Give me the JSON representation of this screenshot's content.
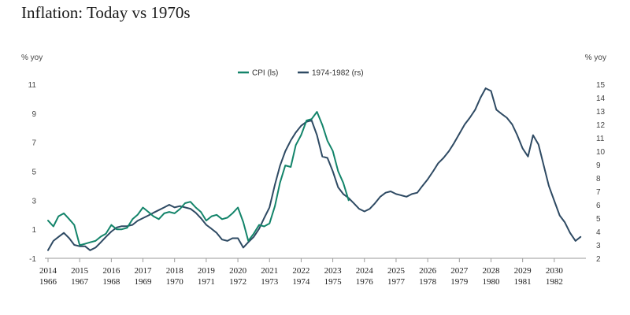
{
  "chart_data": {
    "type": "line",
    "title": "Inflation: Today vs 1970s",
    "left_axis": {
      "unit_label": "% yoy",
      "ylim": [
        -1,
        11
      ],
      "ticks": [
        -1,
        1,
        3,
        5,
        7,
        9,
        11
      ]
    },
    "right_axis": {
      "unit_label": "% yoy",
      "ylim": [
        2,
        15
      ],
      "ticks": [
        2,
        3,
        4,
        5,
        6,
        7,
        8,
        9,
        10,
        11,
        12,
        13,
        14,
        15
      ]
    },
    "x_ticks_top": [
      "2014",
      "2015",
      "2016",
      "2017",
      "2018",
      "2019",
      "2020",
      "2021",
      "2022",
      "2023",
      "2024",
      "2025",
      "2026",
      "2027",
      "2028",
      "2029",
      "2030"
    ],
    "x_ticks_bottom": [
      "1966",
      "1967",
      "1968",
      "1969",
      "1970",
      "1971",
      "1972",
      "1973",
      "1974",
      "1975",
      "1976",
      "1977",
      "1978",
      "1979",
      "1980",
      "1981",
      "1982"
    ],
    "legend_position": "top-center",
    "grid": false,
    "series": [
      {
        "name": "CPI (ls)",
        "axis": "left",
        "color": "#13846a",
        "x": [
          2014.0,
          2014.17,
          2014.33,
          2014.5,
          2014.67,
          2014.83,
          2015.0,
          2015.17,
          2015.33,
          2015.5,
          2015.67,
          2015.83,
          2016.0,
          2016.17,
          2016.33,
          2016.5,
          2016.67,
          2016.83,
          2017.0,
          2017.17,
          2017.33,
          2017.5,
          2017.67,
          2017.83,
          2018.0,
          2018.17,
          2018.33,
          2018.5,
          2018.67,
          2018.83,
          2019.0,
          2019.17,
          2019.33,
          2019.5,
          2019.67,
          2019.83,
          2020.0,
          2020.17,
          2020.33,
          2020.5,
          2020.67,
          2020.83,
          2021.0,
          2021.17,
          2021.33,
          2021.5,
          2021.67,
          2021.83,
          2022.0,
          2022.17,
          2022.33,
          2022.5,
          2022.67,
          2022.83,
          2023.0,
          2023.17,
          2023.33,
          2023.5
        ],
        "values": [
          1.6,
          1.2,
          1.9,
          2.1,
          1.7,
          1.3,
          -0.1,
          0.0,
          0.1,
          0.2,
          0.5,
          0.7,
          1.3,
          1.0,
          1.0,
          1.1,
          1.7,
          2.0,
          2.5,
          2.2,
          1.9,
          1.7,
          2.1,
          2.2,
          2.1,
          2.4,
          2.8,
          2.9,
          2.5,
          2.2,
          1.6,
          1.9,
          2.0,
          1.7,
          1.8,
          2.1,
          2.5,
          1.5,
          0.2,
          0.7,
          1.3,
          1.2,
          1.4,
          2.6,
          4.2,
          5.4,
          5.3,
          6.8,
          7.5,
          8.5,
          8.6,
          9.1,
          8.2,
          7.1,
          6.4,
          5.0,
          4.2,
          3.0
        ]
      },
      {
        "name": "1974-1982 (rs)",
        "axis": "right",
        "color": "#2e4a63",
        "x": [
          2014.0,
          2014.17,
          2014.33,
          2014.5,
          2014.67,
          2014.83,
          2015.0,
          2015.17,
          2015.33,
          2015.5,
          2015.67,
          2015.83,
          2016.0,
          2016.17,
          2016.33,
          2016.5,
          2016.67,
          2016.83,
          2017.0,
          2017.17,
          2017.33,
          2017.5,
          2017.67,
          2017.83,
          2018.0,
          2018.17,
          2018.33,
          2018.5,
          2018.67,
          2018.83,
          2019.0,
          2019.17,
          2019.33,
          2019.5,
          2019.67,
          2019.83,
          2020.0,
          2020.17,
          2020.33,
          2020.5,
          2020.67,
          2020.83,
          2021.0,
          2021.17,
          2021.33,
          2021.5,
          2021.67,
          2021.83,
          2022.0,
          2022.17,
          2022.33,
          2022.5,
          2022.67,
          2022.83,
          2023.0,
          2023.17,
          2023.33,
          2023.5,
          2023.67,
          2023.83,
          2024.0,
          2024.17,
          2024.33,
          2024.5,
          2024.67,
          2024.83,
          2025.0,
          2025.17,
          2025.33,
          2025.5,
          2025.67,
          2025.83,
          2026.0,
          2026.17,
          2026.33,
          2026.5,
          2026.67,
          2026.83,
          2027.0,
          2027.17,
          2027.33,
          2027.5,
          2027.67,
          2027.83,
          2028.0,
          2028.17,
          2028.33,
          2028.5,
          2028.67,
          2028.83,
          2029.0,
          2029.17,
          2029.33,
          2029.5,
          2029.67,
          2029.83,
          2030.0,
          2030.17,
          2030.33,
          2030.5,
          2030.67,
          2030.83
        ],
        "values": [
          2.6,
          3.3,
          3.6,
          3.9,
          3.5,
          3.0,
          2.9,
          2.9,
          2.6,
          2.8,
          3.2,
          3.6,
          4.0,
          4.3,
          4.4,
          4.4,
          4.5,
          4.8,
          5.0,
          5.2,
          5.4,
          5.6,
          5.8,
          6.0,
          5.8,
          5.9,
          5.8,
          5.7,
          5.4,
          5.0,
          4.5,
          4.2,
          3.9,
          3.4,
          3.3,
          3.5,
          3.5,
          2.8,
          3.2,
          3.6,
          4.2,
          5.0,
          5.8,
          7.5,
          8.9,
          10.0,
          10.8,
          11.4,
          11.9,
          12.2,
          12.3,
          11.2,
          9.6,
          9.5,
          8.5,
          7.3,
          6.8,
          6.5,
          6.1,
          5.7,
          5.5,
          5.7,
          6.1,
          6.6,
          6.9,
          7.0,
          6.8,
          6.7,
          6.6,
          6.8,
          6.9,
          7.4,
          7.9,
          8.5,
          9.1,
          9.5,
          10.0,
          10.6,
          11.3,
          12.0,
          12.5,
          13.1,
          14.0,
          14.7,
          14.5,
          13.1,
          12.8,
          12.5,
          12.0,
          11.2,
          10.2,
          9.6,
          11.2,
          10.5,
          8.9,
          7.4,
          6.3,
          5.2,
          4.7,
          3.9,
          3.3,
          3.6
        ]
      }
    ]
  }
}
